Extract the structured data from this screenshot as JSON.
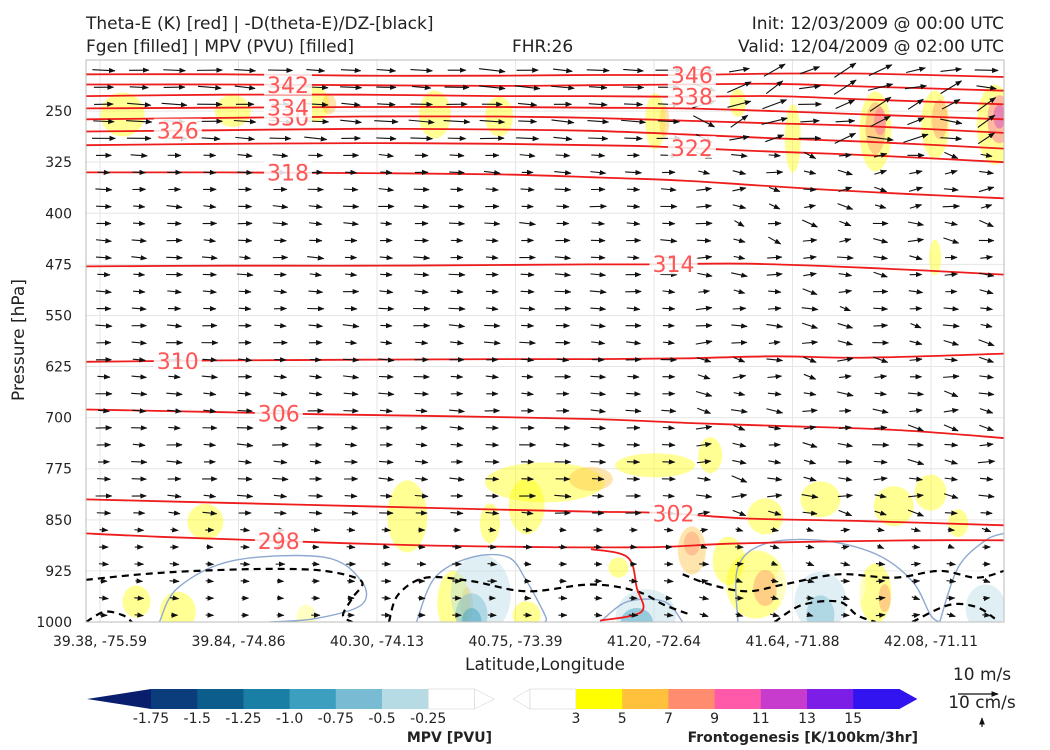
{
  "header": {
    "title_left_1": "Theta-E (K) [red] | -D(theta-E)/DZ-[black]",
    "title_left_2": "Fgen [filled] | MPV (PVU) [filled]",
    "title_center": "FHR:26",
    "title_right_1": "Init: 12/03/2009 @ 00:00 UTC",
    "title_right_2": "Valid: 12/04/2009 @ 02:00 UTC"
  },
  "chart_data": {
    "type": "cross-section",
    "xlabel": "Latitude,Longitude",
    "ylabel": "Pressure [hPa]",
    "ylim": [
      1000,
      175
    ],
    "y_ticks": [
      250,
      325,
      400,
      475,
      550,
      625,
      700,
      775,
      850,
      925,
      1000
    ],
    "x_tick_labels": [
      "39.38, -75.59",
      "39.84, -74.86",
      "40.30, -74.13",
      "40.75, -73.39",
      "41.20, -72.64",
      "41.64, -71.88",
      "42.08, -71.11"
    ],
    "grid": true,
    "theta_e_contours": [
      {
        "level": 298,
        "label": "298",
        "points": [
          [
            0.0,
            870
          ],
          [
            0.08,
            875
          ],
          [
            0.19,
            880
          ],
          [
            0.35,
            887
          ],
          [
            0.5,
            890
          ],
          [
            0.62,
            890
          ],
          [
            0.7,
            885
          ],
          [
            0.8,
            882
          ],
          [
            0.9,
            880
          ],
          [
            1.0,
            880
          ]
        ]
      },
      {
        "level": 302,
        "label": "302",
        "points": [
          [
            0.0,
            820
          ],
          [
            0.15,
            825
          ],
          [
            0.3,
            830
          ],
          [
            0.45,
            835
          ],
          [
            0.55,
            838
          ],
          [
            0.63,
            840
          ],
          [
            0.72,
            848
          ],
          [
            0.85,
            852
          ],
          [
            1.0,
            858
          ]
        ]
      },
      {
        "level": 306,
        "label": "306",
        "points": [
          [
            0.0,
            688
          ],
          [
            0.15,
            692
          ],
          [
            0.25,
            695
          ],
          [
            0.4,
            698
          ],
          [
            0.55,
            702
          ],
          [
            0.66,
            708
          ],
          [
            0.75,
            712
          ],
          [
            0.88,
            718
          ],
          [
            1.0,
            730
          ]
        ]
      },
      {
        "level": 310,
        "label": "310",
        "points": [
          [
            0.0,
            618
          ],
          [
            0.15,
            616
          ],
          [
            0.3,
            615
          ],
          [
            0.45,
            614
          ],
          [
            0.55,
            614
          ],
          [
            0.65,
            613
          ],
          [
            0.75,
            610
          ],
          [
            0.85,
            612
          ],
          [
            1.0,
            606
          ]
        ]
      },
      {
        "level": 314,
        "label": "314",
        "points": [
          [
            0.0,
            478
          ],
          [
            0.15,
            477
          ],
          [
            0.3,
            477
          ],
          [
            0.45,
            476
          ],
          [
            0.55,
            475
          ],
          [
            0.62,
            475
          ],
          [
            0.72,
            474
          ],
          [
            0.85,
            480
          ],
          [
            1.0,
            490
          ]
        ]
      },
      {
        "level": 318,
        "label": "318",
        "points": [
          [
            0.0,
            340
          ],
          [
            0.15,
            340
          ],
          [
            0.3,
            341
          ],
          [
            0.45,
            343
          ],
          [
            0.55,
            347
          ],
          [
            0.65,
            352
          ],
          [
            0.72,
            358
          ],
          [
            0.8,
            365
          ],
          [
            0.9,
            372
          ],
          [
            1.0,
            378
          ]
        ]
      },
      {
        "level": 322,
        "label": "322",
        "points": [
          [
            0.0,
            300
          ],
          [
            0.15,
            298
          ],
          [
            0.3,
            297
          ],
          [
            0.45,
            298
          ],
          [
            0.55,
            300
          ],
          [
            0.62,
            302
          ],
          [
            0.72,
            308
          ],
          [
            0.82,
            313
          ],
          [
            0.9,
            318
          ],
          [
            1.0,
            325
          ]
        ]
      },
      {
        "level": 326,
        "label": "326",
        "points": [
          [
            0.0,
            280
          ],
          [
            0.15,
            278
          ],
          [
            0.3,
            276
          ],
          [
            0.45,
            277
          ],
          [
            0.55,
            279
          ],
          [
            0.65,
            284
          ],
          [
            0.75,
            290
          ],
          [
            0.85,
            295
          ],
          [
            1.0,
            305
          ]
        ]
      },
      {
        "level": 330,
        "label": "330",
        "points": [
          [
            0.0,
            262
          ],
          [
            0.15,
            260
          ],
          [
            0.3,
            258
          ],
          [
            0.45,
            258
          ],
          [
            0.55,
            260
          ],
          [
            0.65,
            264
          ],
          [
            0.75,
            268
          ],
          [
            0.85,
            272
          ],
          [
            1.0,
            282
          ]
        ]
      },
      {
        "level": 334,
        "label": "334",
        "points": [
          [
            0.0,
            246
          ],
          [
            0.15,
            245
          ],
          [
            0.3,
            244
          ],
          [
            0.45,
            244
          ],
          [
            0.55,
            245
          ],
          [
            0.65,
            246
          ],
          [
            0.75,
            250
          ],
          [
            0.85,
            255
          ],
          [
            1.0,
            262
          ]
        ]
      },
      {
        "level": 338,
        "label": "338",
        "points": [
          [
            0.0,
            228
          ],
          [
            0.15,
            226
          ],
          [
            0.3,
            226
          ],
          [
            0.45,
            228
          ],
          [
            0.55,
            228
          ],
          [
            0.65,
            229
          ],
          [
            0.75,
            228
          ],
          [
            0.85,
            233
          ],
          [
            1.0,
            240
          ]
        ]
      },
      {
        "level": 342,
        "label": "342",
        "points": [
          [
            0.0,
            211
          ],
          [
            0.15,
            211
          ],
          [
            0.3,
            212
          ],
          [
            0.45,
            213
          ],
          [
            0.55,
            212
          ],
          [
            0.65,
            211
          ],
          [
            0.75,
            210
          ],
          [
            0.85,
            214
          ],
          [
            1.0,
            220
          ]
        ]
      },
      {
        "level": 346,
        "label": "346",
        "points": [
          [
            0.0,
            196
          ],
          [
            0.15,
            196
          ],
          [
            0.3,
            198
          ],
          [
            0.45,
            198
          ],
          [
            0.55,
            197
          ],
          [
            0.65,
            197
          ],
          [
            0.75,
            195
          ],
          [
            0.85,
            195
          ],
          [
            1.0,
            200
          ]
        ]
      }
    ],
    "fgen_colorbar": {
      "label": "Frontogenesis [K/100km/3hr]",
      "ticks": [
        "3",
        "5",
        "7",
        "9",
        "11",
        "13",
        "15"
      ],
      "colors": [
        "#ffffff",
        "#ffff00",
        "#ffc03c",
        "#ff8c6e",
        "#ff5aaa",
        "#c83ccd",
        "#7d1ee6",
        "#3214f0"
      ]
    },
    "mpv_colorbar": {
      "label": "MPV [PVU]",
      "ticks": [
        "-1.75",
        "-1.5",
        "-1.25",
        "-1.0",
        "-0.75",
        "-0.5",
        "-0.25"
      ],
      "colors": [
        "#0a1e6e",
        "#0b3c7c",
        "#0c5c8c",
        "#1a7fa5",
        "#3c9fc0",
        "#78bbd2",
        "#b7dbe5",
        "#ffffff"
      ]
    },
    "wind_reference": {
      "horizontal": "10 m/s",
      "vertical": "10 cm/s"
    }
  }
}
